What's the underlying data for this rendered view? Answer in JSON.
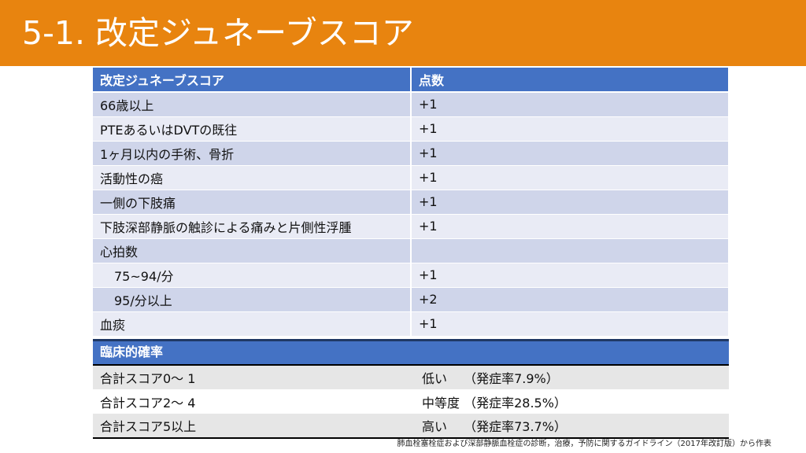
{
  "title": "5-1. 改定ジュネーブスコア",
  "score_table": {
    "header": {
      "item": "改定ジュネーブスコア",
      "points": "点数"
    },
    "rows": [
      {
        "item": "66歳以上",
        "points": "+1"
      },
      {
        "item": "PTEあるいはDVTの既往",
        "points": "+1"
      },
      {
        "item": "1ヶ月以内の手術、骨折",
        "points": "+1"
      },
      {
        "item": "活動性の癌",
        "points": "+1"
      },
      {
        "item": "一側の下肢痛",
        "points": "+1"
      },
      {
        "item": "下肢深部静脈の触診による痛みと片側性浮腫",
        "points": "+1"
      },
      {
        "item": "心拍数",
        "points": ""
      },
      {
        "item": "75~94/分",
        "points": "+1"
      },
      {
        "item": "95/分以上",
        "points": "+2"
      },
      {
        "item": "血痰",
        "points": "+1"
      }
    ]
  },
  "probability_table": {
    "header": "臨床的確率",
    "rows": [
      {
        "score": "合計スコア0～ 1",
        "probability": "低い　 （発症率7.9%）"
      },
      {
        "score": "合計スコア2～ 4",
        "probability": "中等度 （発症率28.5%）"
      },
      {
        "score": "合計スコア5以上",
        "probability": "高い　 （発症率73.7%）"
      }
    ]
  },
  "footnote": "肺血栓塞栓症および深部静脈血栓症の診断，治療，予防に関するガイドライン（2017年改訂版）から作表",
  "colors": {
    "title_bar": "#e8840f",
    "table_header": "#4472c4",
    "row_odd": "#cfd5ea",
    "row_even": "#e9ebf5",
    "prob_shade": "#e6e6e6"
  }
}
